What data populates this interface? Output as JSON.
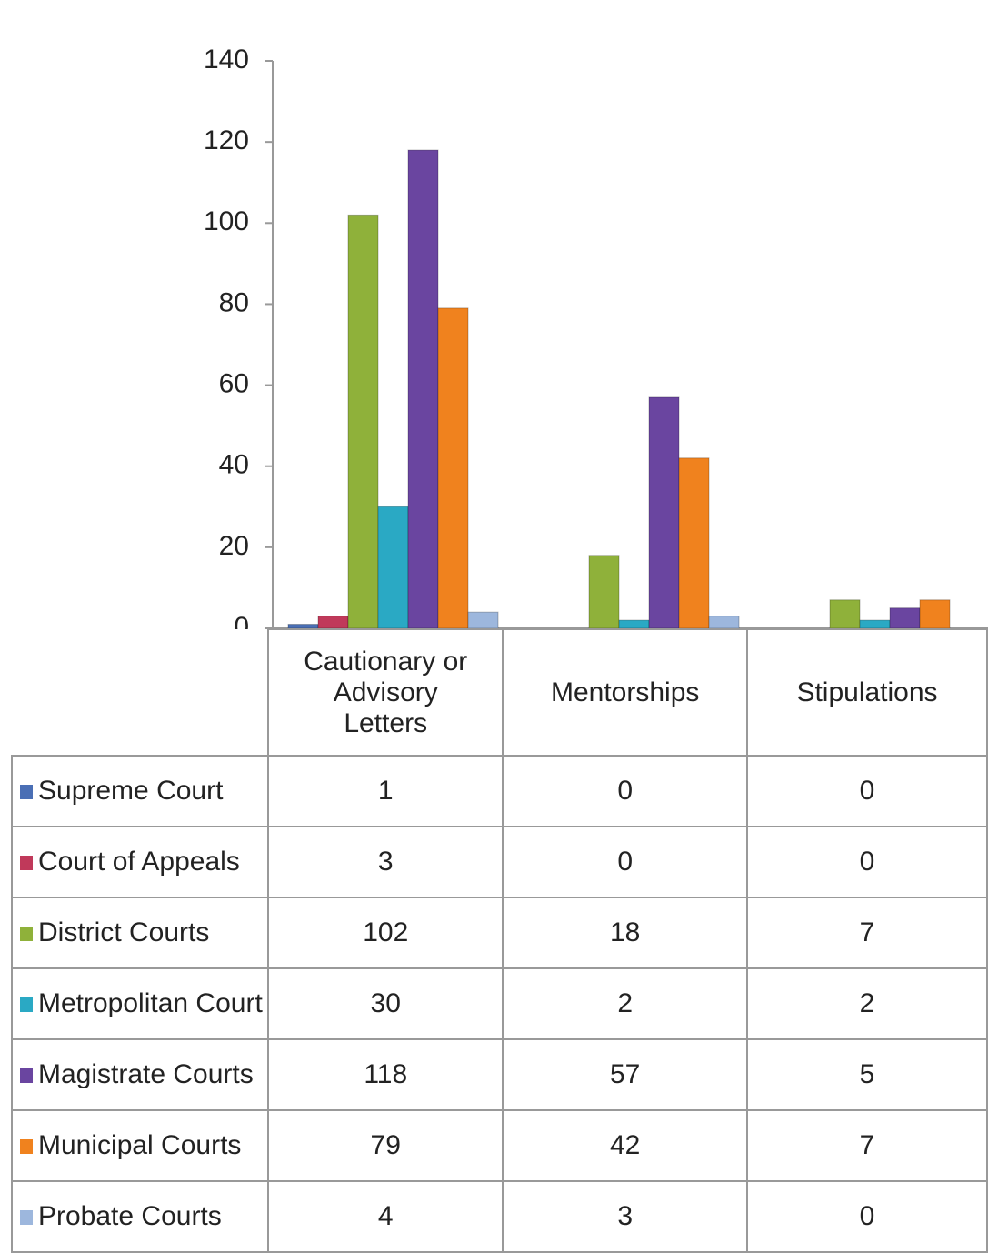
{
  "chart_data": {
    "type": "bar",
    "categories": [
      "Cautionary or Advisory Letters",
      "Mentorships",
      "Stipulations"
    ],
    "series": [
      {
        "name": "Supreme Court",
        "color": "#4a6fb5",
        "values": [
          1,
          0,
          0
        ]
      },
      {
        "name": "Court of Appeals",
        "color": "#c0395a",
        "values": [
          3,
          0,
          0
        ]
      },
      {
        "name": "District Courts",
        "color": "#8fb13a",
        "values": [
          102,
          18,
          7
        ]
      },
      {
        "name": "Metropolitan Court",
        "color": "#2aa9c4",
        "values": [
          30,
          2,
          2
        ]
      },
      {
        "name": "Magistrate Courts",
        "color": "#6a45a0",
        "values": [
          118,
          57,
          5
        ]
      },
      {
        "name": "Municipal Courts",
        "color": "#f0821e",
        "values": [
          79,
          42,
          7
        ]
      },
      {
        "name": "Probate Courts",
        "color": "#9db7dd",
        "values": [
          4,
          3,
          0
        ]
      }
    ],
    "ylim": [
      0,
      140
    ],
    "yticks": [
      0,
      20,
      40,
      60,
      80,
      100,
      120,
      140
    ]
  }
}
